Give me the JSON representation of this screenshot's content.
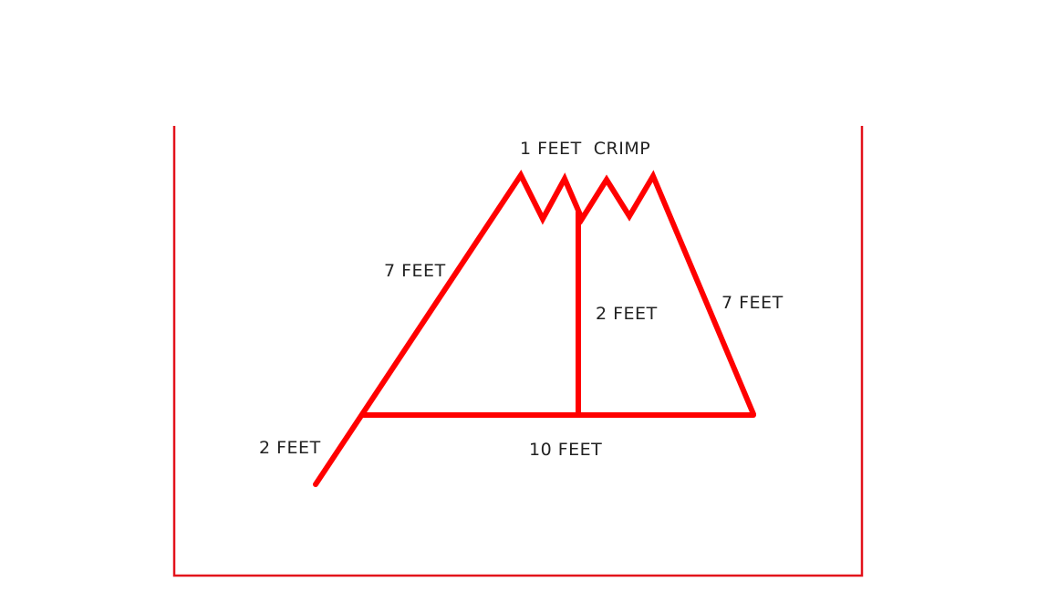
{
  "colors": {
    "frame": "#e3121b",
    "shape": "#ff0000",
    "text": "#222222",
    "background": "#ffffff"
  },
  "labels": {
    "crimp": "1 FEET  CRIMP",
    "left_slope": "7 FEET",
    "center_post": "2 FEET",
    "right_slope": "7 FEET",
    "base": "10 FEET",
    "extension": "2 FEET"
  }
}
